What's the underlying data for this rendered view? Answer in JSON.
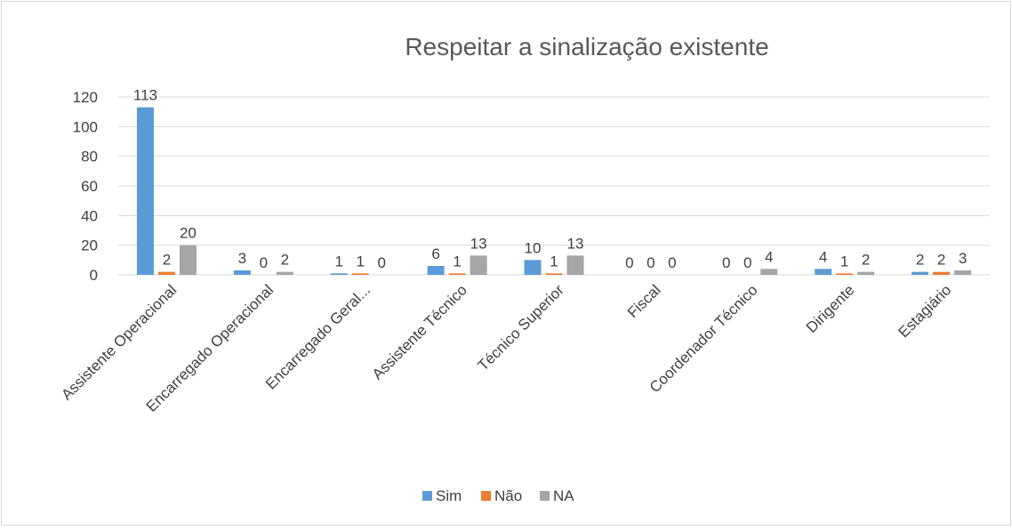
{
  "chart_data": {
    "type": "bar",
    "title": "Respeitar a sinalização existente",
    "categories": [
      "Assistente Operacional",
      "Encarregado Operacional",
      "Encarregado Geral...",
      "Assistente Técnico",
      "Técnico Superior",
      "Fiscal",
      "Coordenador Técnico",
      "Dirigente",
      "Estagiário"
    ],
    "series": [
      {
        "name": "Sim",
        "color": "#5b9bd5",
        "values": [
          113,
          3,
          1,
          6,
          10,
          0,
          0,
          4,
          2
        ]
      },
      {
        "name": "Não",
        "color": "#ed7d31",
        "values": [
          2,
          0,
          1,
          1,
          1,
          0,
          0,
          1,
          2
        ]
      },
      {
        "name": "NA",
        "color": "#a5a5a5",
        "values": [
          20,
          2,
          0,
          13,
          13,
          0,
          4,
          2,
          3
        ]
      }
    ],
    "ylim": [
      0,
      120
    ],
    "yticks": [
      0,
      20,
      40,
      60,
      80,
      100,
      120
    ],
    "grid": true,
    "legend": "bottom"
  }
}
